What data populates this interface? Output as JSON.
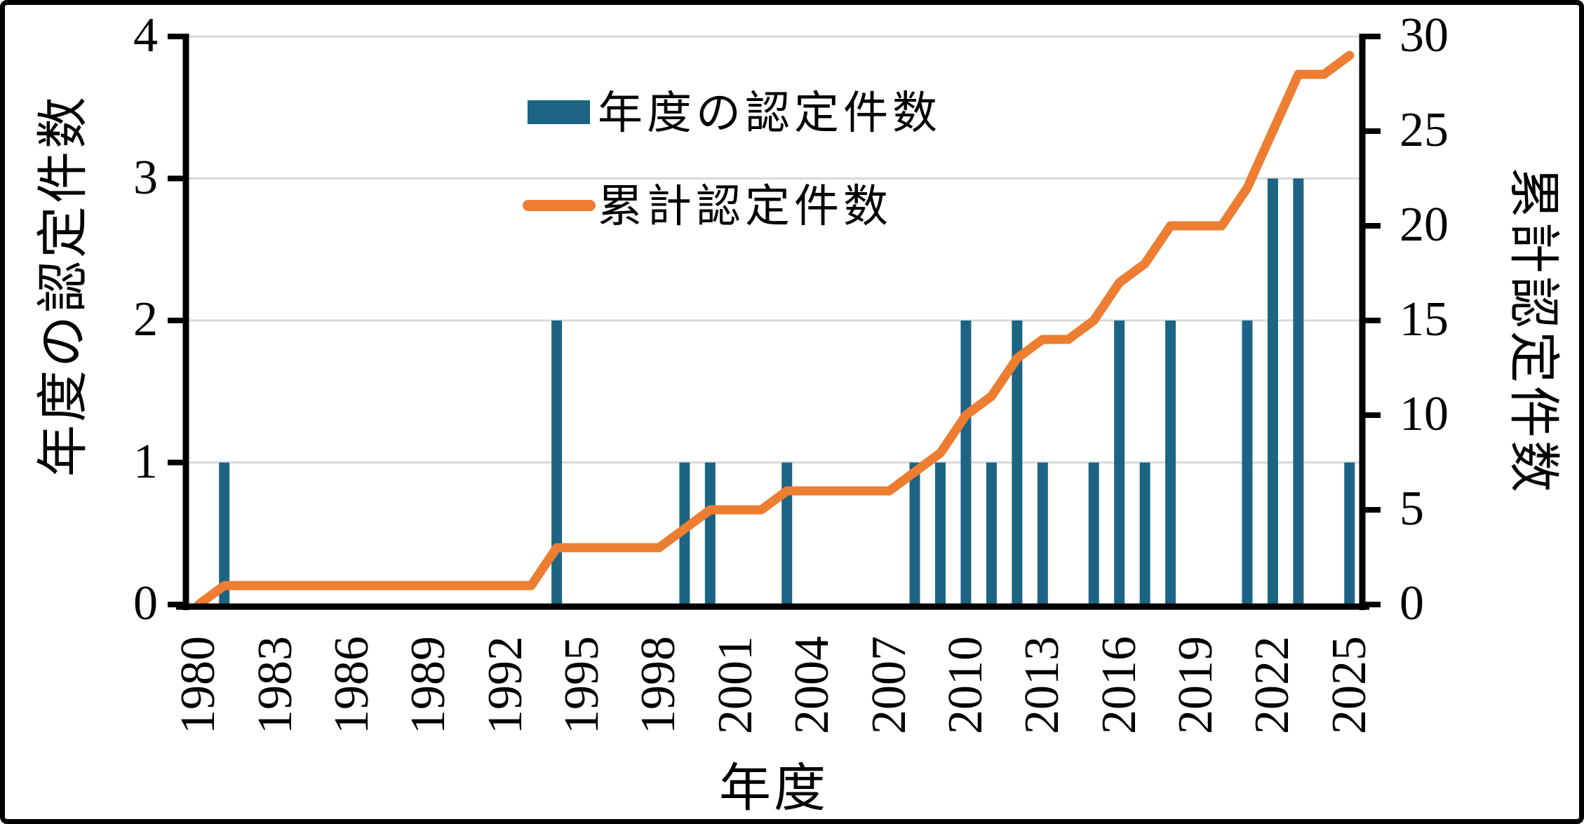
{
  "chart_data": {
    "type": "combo",
    "title": "",
    "xlabel": "年度",
    "x": [
      1980,
      1981,
      1982,
      1983,
      1984,
      1985,
      1986,
      1987,
      1988,
      1989,
      1990,
      1991,
      1992,
      1993,
      1994,
      1995,
      1996,
      1997,
      1998,
      1999,
      2000,
      2001,
      2002,
      2003,
      2004,
      2005,
      2006,
      2007,
      2008,
      2009,
      2010,
      2011,
      2012,
      2013,
      2014,
      2015,
      2016,
      2017,
      2018,
      2019,
      2020,
      2021,
      2022,
      2023,
      2024,
      2025
    ],
    "x_tick_years": [
      1980,
      1983,
      1986,
      1989,
      1992,
      1995,
      1998,
      2001,
      2004,
      2007,
      2010,
      2013,
      2016,
      2019,
      2022,
      2025
    ],
    "series": [
      {
        "name": "年度の認定件数",
        "kind": "bar",
        "axis": "left",
        "color": "#1D6484",
        "values": [
          0,
          1,
          0,
          0,
          0,
          0,
          0,
          0,
          0,
          0,
          0,
          0,
          0,
          0,
          2,
          0,
          0,
          0,
          0,
          1,
          1,
          0,
          0,
          1,
          0,
          0,
          0,
          0,
          1,
          1,
          2,
          1,
          2,
          1,
          0,
          1,
          2,
          1,
          2,
          0,
          0,
          2,
          3,
          3,
          0,
          1
        ]
      },
      {
        "name": "累計認定件数",
        "kind": "line",
        "axis": "right",
        "color": "#ED7D31",
        "values": [
          0,
          1,
          1,
          1,
          1,
          1,
          1,
          1,
          1,
          1,
          1,
          1,
          1,
          1,
          3,
          3,
          3,
          3,
          3,
          4,
          5,
          5,
          5,
          6,
          6,
          6,
          6,
          6,
          7,
          8,
          10,
          11,
          13,
          14,
          14,
          15,
          17,
          18,
          20,
          20,
          20,
          22,
          25,
          28,
          28,
          29
        ]
      }
    ],
    "left_axis": {
      "label": "年度の認定件数",
      "min": 0,
      "max": 4,
      "ticks": [
        0,
        1,
        2,
        3,
        4
      ]
    },
    "right_axis": {
      "label": "累計認定件数",
      "min": 0,
      "max": 30,
      "ticks": [
        0,
        5,
        10,
        15,
        20,
        25,
        30
      ]
    },
    "grid": "horizontal gridlines at left-axis values 1,2,3,4",
    "legend_position": "inside-top-left-of-plot"
  },
  "legend": {
    "items": [
      {
        "label": "年度の認定件数",
        "swatch": "bar-swatch",
        "color": "#1D6484"
      },
      {
        "label": "累計認定件数",
        "swatch": "line-swatch",
        "color": "#ED7D31"
      }
    ]
  },
  "colors": {
    "bar": "#1D6484",
    "line": "#ED7D31",
    "gridline": "#D9D9D9",
    "axis": "#000000",
    "text": "#000000",
    "background": "#FFFFFF"
  }
}
